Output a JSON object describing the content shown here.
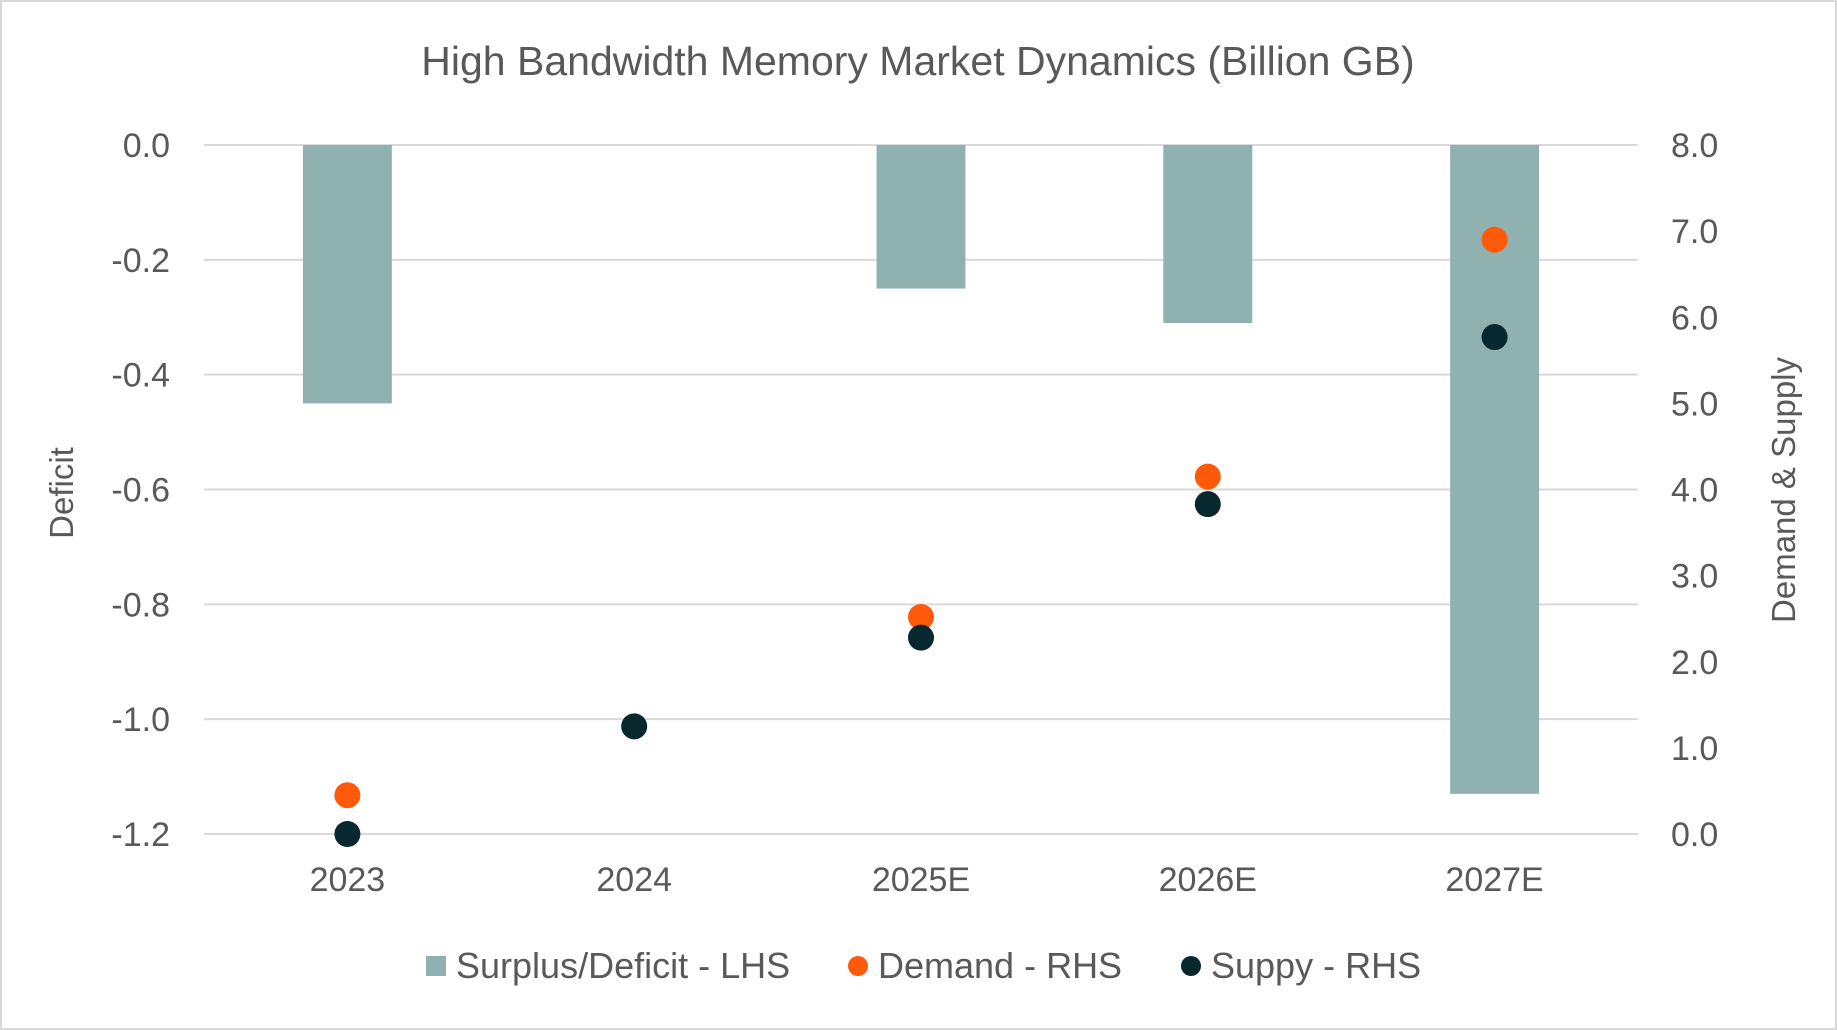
{
  "chart_data": {
    "type": "bar",
    "title": "High Bandwidth Memory Market Dynamics (Billion GB)",
    "categories": [
      "2023",
      "2024",
      "2025E",
      "2026E",
      "2027E"
    ],
    "y_left": {
      "label": "Deficit",
      "ylim": [
        -1.2,
        0.0
      ],
      "ticks": [
        "0.0",
        "-0.2",
        "-0.4",
        "-0.6",
        "-0.8",
        "-1.0",
        "-1.2"
      ]
    },
    "y_right": {
      "label": "Demand & Supply",
      "ylim": [
        0.0,
        8.0
      ],
      "ticks": [
        "8.0",
        "7.0",
        "6.0",
        "5.0",
        "4.0",
        "3.0",
        "2.0",
        "1.0",
        "0.0"
      ]
    },
    "grid": true,
    "legend_position": "bottom",
    "series": [
      {
        "name": "Surplus/Deficit - LHS",
        "type": "bar",
        "axis": "left",
        "color": "#8fb1b0",
        "values": [
          -0.45,
          0.0,
          -0.25,
          -0.31,
          -1.13
        ]
      },
      {
        "name": "Demand - RHS",
        "type": "scatter",
        "axis": "right",
        "color": "#ff5a0a",
        "values": [
          0.45,
          null,
          2.52,
          4.15,
          6.9
        ]
      },
      {
        "name": "Suppy - RHS",
        "type": "scatter",
        "axis": "right",
        "color": "#06282e",
        "values": [
          0.0,
          1.25,
          2.28,
          3.83,
          5.77
        ]
      }
    ]
  }
}
